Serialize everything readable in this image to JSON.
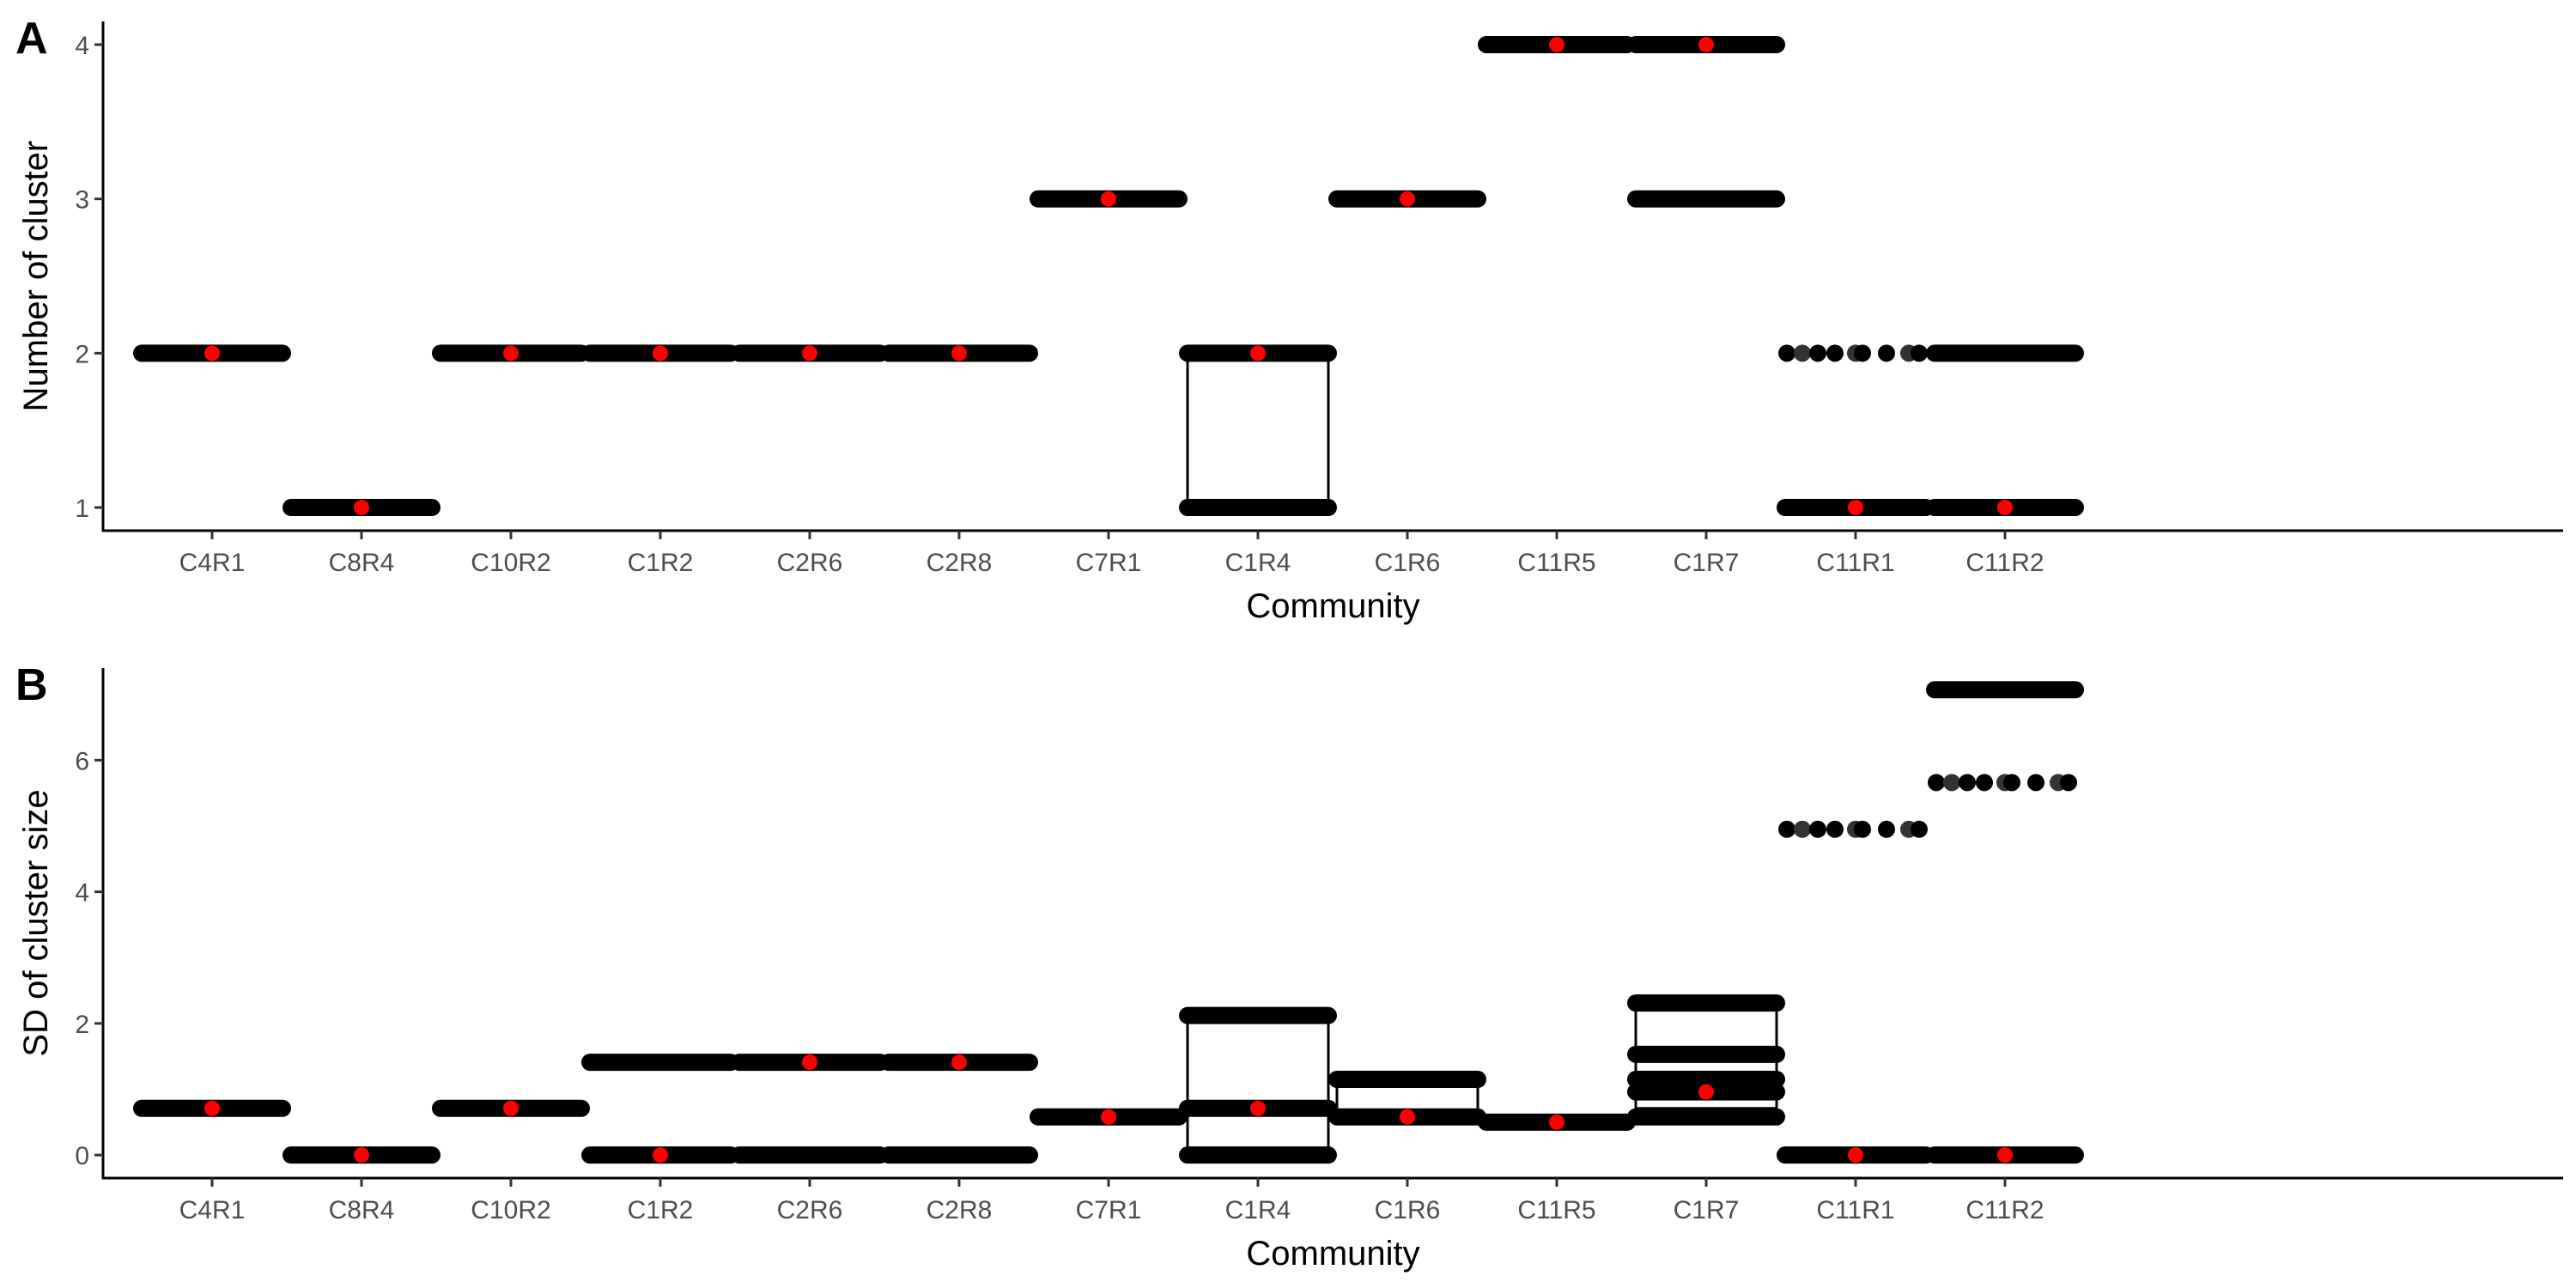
{
  "chart_data": [
    {
      "type": "scatter",
      "panel_label": "A",
      "xlabel": "Community",
      "ylabel": "Number of cluster",
      "categories": [
        "C4R1",
        "C8R4",
        "C10R2",
        "C1R2",
        "C2R6",
        "C2R8",
        "C7R1",
        "C1R4",
        "C1R6",
        "C11R5",
        "C1R7",
        "C11R1",
        "C11R2"
      ],
      "ylim": [
        0.85,
        4.15
      ],
      "yticks": [
        1,
        2,
        3,
        4
      ],
      "grid": false,
      "legend": "none",
      "point_color": "#000000",
      "mean_color": "#ff0000",
      "groups": [
        {
          "levels": [
            2
          ],
          "mean": 2
        },
        {
          "levels": [
            1
          ],
          "mean": 1
        },
        {
          "levels": [
            2
          ],
          "mean": 2
        },
        {
          "levels": [
            2
          ],
          "mean": 2
        },
        {
          "levels": [
            2
          ],
          "mean": 2
        },
        {
          "levels": [
            2
          ],
          "mean": 2
        },
        {
          "levels": [
            3
          ],
          "mean": 3
        },
        {
          "levels": [
            1,
            2
          ],
          "mean": 2,
          "box": [
            1,
            2
          ]
        },
        {
          "levels": [
            3
          ],
          "mean": 3
        },
        {
          "levels": [
            4
          ],
          "mean": 4
        },
        {
          "levels": [
            3,
            4
          ],
          "mean": 4
        },
        {
          "levels": [
            1
          ],
          "sparse": [
            2
          ],
          "mean": 1
        },
        {
          "levels": [
            1,
            2
          ],
          "mean": 1
        }
      ]
    },
    {
      "type": "scatter",
      "panel_label": "B",
      "xlabel": "Community",
      "ylabel": "SD of cluster size",
      "categories": [
        "C4R1",
        "C8R4",
        "C10R2",
        "C1R2",
        "C2R6",
        "C2R8",
        "C7R1",
        "C1R4",
        "C1R6",
        "C11R5",
        "C1R7",
        "C11R1",
        "C11R2"
      ],
      "ylim": [
        -0.35,
        7.4
      ],
      "yticks": [
        0,
        2,
        4,
        6
      ],
      "grid": false,
      "legend": "none",
      "point_color": "#000000",
      "mean_color": "#ff0000",
      "groups": [
        {
          "levels": [
            0.71
          ],
          "mean": 0.71
        },
        {
          "levels": [
            0
          ],
          "mean": 0
        },
        {
          "levels": [
            0.71
          ],
          "mean": 0.71
        },
        {
          "levels": [
            0,
            1.41
          ],
          "mean": 0
        },
        {
          "levels": [
            0,
            1.41
          ],
          "mean": 1.41
        },
        {
          "levels": [
            0,
            1.41
          ],
          "mean": 1.41
        },
        {
          "levels": [
            0.58
          ],
          "mean": 0.58
        },
        {
          "levels": [
            0,
            0.71,
            2.12
          ],
          "mean": 0.71,
          "box": [
            0.1,
            2.12
          ]
        },
        {
          "levels": [
            0.58,
            1.15
          ],
          "mean": 0.58,
          "box": [
            0.58,
            1.15
          ]
        },
        {
          "levels": [
            0.5
          ],
          "mean": 0.5
        },
        {
          "levels": [
            0.58,
            0.96,
            1.15,
            1.53,
            2.31
          ],
          "mean": 0.96,
          "box": [
            0.71,
            2.31
          ]
        },
        {
          "levels": [
            0
          ],
          "sparse": [
            4.95
          ],
          "mean": 0
        },
        {
          "levels": [
            0,
            7.07
          ],
          "sparse": [
            5.66
          ],
          "mean": 0
        }
      ]
    }
  ]
}
